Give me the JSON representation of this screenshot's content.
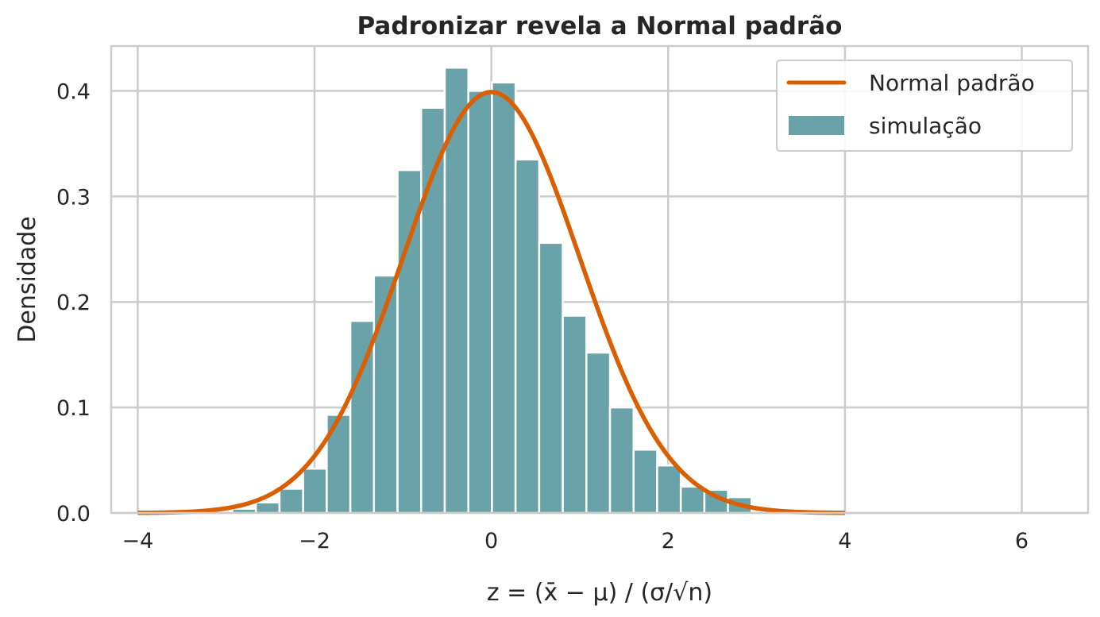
{
  "chart_data": {
    "type": "bar",
    "title": "Padronizar revela a Normal padrão",
    "xlabel": "z = (x̄ − μ) / (σ/√n)",
    "ylabel": "Densidade",
    "xlim": [
      -4.3,
      6.75
    ],
    "ylim": [
      0,
      0.4425
    ],
    "xticks": [
      -4,
      -2,
      0,
      2,
      4,
      6
    ],
    "xtick_labels": [
      "−4",
      "−2",
      "0",
      "2",
      "4",
      "6"
    ],
    "yticks": [
      0.0,
      0.1,
      0.2,
      0.3,
      0.4
    ],
    "ytick_labels": [
      "0.0",
      "0.1",
      "0.2",
      "0.3",
      "0.4"
    ],
    "grid": true,
    "legend_position": "top-right",
    "series": [
      {
        "name": "simulação",
        "type": "histogram",
        "color": "#6aa2aa",
        "bin_edges": [
          -2.93,
          -2.663,
          -2.396,
          -2.129,
          -1.862,
          -1.595,
          -1.328,
          -1.061,
          -0.794,
          -0.527,
          -0.26,
          0.007,
          0.274,
          0.541,
          0.808,
          1.075,
          1.342,
          1.609,
          1.876,
          2.143,
          2.41,
          2.677,
          2.944,
          3.211
        ],
        "values": [
          0.004,
          0.01,
          0.023,
          0.042,
          0.093,
          0.182,
          0.225,
          0.325,
          0.384,
          0.422,
          0.4,
          0.408,
          0.335,
          0.256,
          0.187,
          0.152,
          0.1,
          0.06,
          0.045,
          0.025,
          0.022,
          0.015,
          0.0
        ]
      },
      {
        "name": "Normal padrão",
        "type": "line",
        "color": "#d95f02",
        "function": "standard_normal_pdf",
        "x_range": [
          -4,
          4
        ]
      }
    ]
  }
}
